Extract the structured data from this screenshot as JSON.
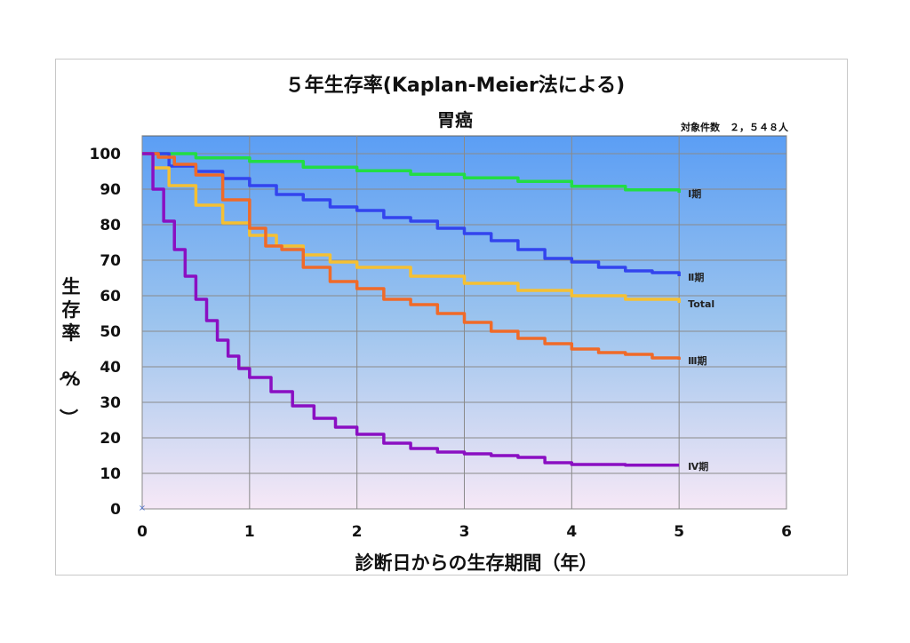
{
  "chart_data": {
    "type": "line",
    "title": "５年生存率(Kaplan-Meier法による)",
    "subtitle": "胃癌",
    "note": "対象件数　２，５４８人",
    "xlabel": "診断日からの生存期間（年）",
    "ylabel": "生存率（%）",
    "xlim": [
      0,
      6
    ],
    "ylim": [
      0,
      100
    ],
    "xticks": [
      "0",
      "1",
      "2",
      "3",
      "4",
      "5",
      "6"
    ],
    "yticks": [
      "0",
      "10",
      "20",
      "30",
      "40",
      "50",
      "60",
      "70",
      "80",
      "90",
      "100"
    ],
    "grid": true,
    "series": [
      {
        "name": "Ⅰ期",
        "color": "#22dd44",
        "x": [
          0,
          0.5,
          1,
          1.5,
          2,
          2.5,
          3,
          3.5,
          4,
          4.5,
          5
        ],
        "y": [
          100,
          98.8,
          97.8,
          96.2,
          95.2,
          94.2,
          93.2,
          92.2,
          90.8,
          89.8,
          89.0
        ]
      },
      {
        "name": "Ⅱ期",
        "color": "#3344ee",
        "x": [
          0,
          0.25,
          0.5,
          0.75,
          1,
          1.25,
          1.5,
          1.75,
          2,
          2.25,
          2.5,
          2.75,
          3,
          3.25,
          3.5,
          3.75,
          4,
          4.25,
          4.5,
          4.75,
          5
        ],
        "y": [
          100,
          96.5,
          95,
          93,
          91,
          88.5,
          87,
          85,
          84,
          82,
          81,
          79,
          77.5,
          75.5,
          73,
          70.5,
          69.5,
          68,
          67,
          66.5,
          65.5
        ]
      },
      {
        "name": "Total",
        "color": "#f5c033",
        "x": [
          0,
          0.1,
          0.25,
          0.5,
          0.75,
          1,
          1.25,
          1.5,
          1.75,
          2,
          2.5,
          3,
          3.5,
          4,
          4.5,
          5
        ],
        "y": [
          100,
          96,
          91,
          85.5,
          80.5,
          77,
          74,
          71.5,
          69.5,
          68,
          65.5,
          63.5,
          61.5,
          60,
          59,
          58
        ]
      },
      {
        "name": "Ⅲ期",
        "color": "#f06a28",
        "x": [
          0,
          0.15,
          0.3,
          0.5,
          0.75,
          1,
          1.15,
          1.3,
          1.5,
          1.75,
          2,
          2.25,
          2.5,
          2.75,
          3,
          3.25,
          3.5,
          3.75,
          4,
          4.25,
          4.5,
          4.75,
          5
        ],
        "y": [
          100,
          99,
          97,
          94,
          87,
          79,
          74,
          73,
          68,
          64,
          62,
          59,
          57.5,
          55,
          52.5,
          50,
          48,
          46.5,
          45,
          44,
          43.5,
          42.5,
          42
        ]
      },
      {
        "name": "Ⅳ期",
        "color": "#8a0fc2",
        "x": [
          0,
          0.1,
          0.2,
          0.3,
          0.4,
          0.5,
          0.6,
          0.7,
          0.8,
          0.9,
          1,
          1.2,
          1.4,
          1.6,
          1.8,
          2,
          2.25,
          2.5,
          2.75,
          3,
          3.25,
          3.5,
          3.75,
          4,
          4.5,
          5
        ],
        "y": [
          100,
          90,
          81,
          73,
          65.5,
          59,
          53,
          47.5,
          43,
          39.5,
          37,
          33,
          29,
          25.5,
          23,
          21,
          18.5,
          17,
          16,
          15.5,
          15,
          14.5,
          13,
          12.5,
          12.3,
          12.3
        ]
      }
    ]
  }
}
